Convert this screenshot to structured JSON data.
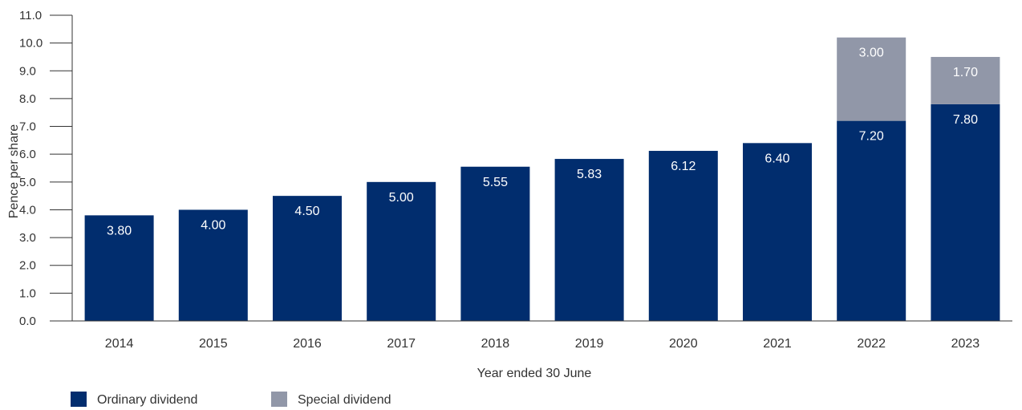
{
  "chart_data": {
    "type": "bar",
    "stacked": true,
    "categories": [
      "2014",
      "2015",
      "2016",
      "2017",
      "2018",
      "2019",
      "2020",
      "2021",
      "2022",
      "2023"
    ],
    "series": [
      {
        "name": "Ordinary dividend",
        "color": "#012d6e",
        "values": [
          3.8,
          4.0,
          4.5,
          5.0,
          5.55,
          5.83,
          6.12,
          6.4,
          7.2,
          7.8
        ],
        "labels": [
          "3.80",
          "4.00",
          "4.50",
          "5.00",
          "5.55",
          "5.83",
          "6.12",
          "6.40",
          "7.20",
          "7.80"
        ]
      },
      {
        "name": "Special dividend",
        "color": "#9197a8",
        "values": [
          0,
          0,
          0,
          0,
          0,
          0,
          0,
          0,
          3.0,
          1.7
        ],
        "labels": [
          "",
          "",
          "",
          "",
          "",
          "",
          "",
          "",
          "3.00",
          "1.70"
        ]
      }
    ],
    "xlabel": "Year ended 30 June",
    "ylabel": "Pence per share",
    "ylim": [
      0,
      11
    ],
    "yticks": [
      "0.0",
      "1.0",
      "2.0",
      "3.0",
      "4.0",
      "5.0",
      "6.0",
      "7.0",
      "8.0",
      "9.0",
      "10.0",
      "11.0"
    ],
    "grid": false,
    "legend_position": "bottom-left",
    "axis_color": "#333333",
    "text_color": "#333333"
  }
}
